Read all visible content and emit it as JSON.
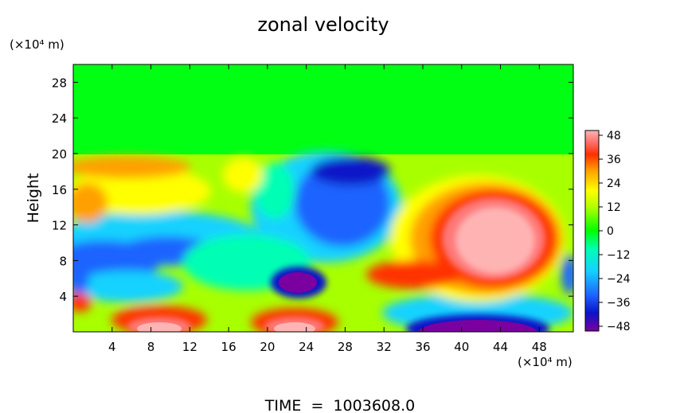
{
  "chart_data": {
    "type": "heatmap",
    "title": "zonal velocity",
    "xlabel": "",
    "ylabel": "Height",
    "x_unit": "(×10⁴ m)",
    "y_unit": "(×10⁴ m)",
    "xlim": [
      0,
      51.5
    ],
    "ylim": [
      0,
      30
    ],
    "x_ticks": [
      "4",
      "8",
      "12",
      "16",
      "20",
      "24",
      "28",
      "32",
      "36",
      "40",
      "44",
      "48"
    ],
    "y_ticks": [
      "4",
      "8",
      "12",
      "16",
      "20",
      "24",
      "28"
    ],
    "colorbar": {
      "ticks": [
        "48",
        "36",
        "24",
        "12",
        "0",
        "−12",
        "−24",
        "−36",
        "−48"
      ],
      "range": [
        -48,
        48
      ],
      "colors": [
        "#7b00a0",
        "#0a14c8",
        "#1e64ff",
        "#14d2ff",
        "#00ffb4",
        "#00ff00",
        "#b4ff00",
        "#ffff00",
        "#ffa000",
        "#ff3000",
        "#ff7878",
        "#ffb4b4"
      ]
    },
    "footer": "TIME  =  1003608.0",
    "features": [
      {
        "region": "upper layer",
        "x": [
          0,
          51.5
        ],
        "y": [
          20,
          30
        ],
        "value": 0
      },
      {
        "region": "positive jet",
        "x": [
          43
        ],
        "y": [
          10
        ],
        "value": 48
      },
      {
        "region": "negative core",
        "x": [
          23
        ],
        "y": [
          5.5
        ],
        "value": -48
      },
      {
        "region": "negative near-bottom",
        "x": [
          43
        ],
        "y": [
          1
        ],
        "value": -48
      },
      {
        "region": "negative band",
        "x": [
          9
        ],
        "y": [
          8
        ],
        "value": -36
      },
      {
        "region": "negative upper",
        "x": [
          30
        ],
        "y": [
          15
        ],
        "value": -36
      },
      {
        "region": "positive lower",
        "x": [
          9
        ],
        "y": [
          1
        ],
        "value": 48
      },
      {
        "region": "positive lower",
        "x": [
          25
        ],
        "y": [
          1
        ],
        "value": 48
      }
    ]
  }
}
